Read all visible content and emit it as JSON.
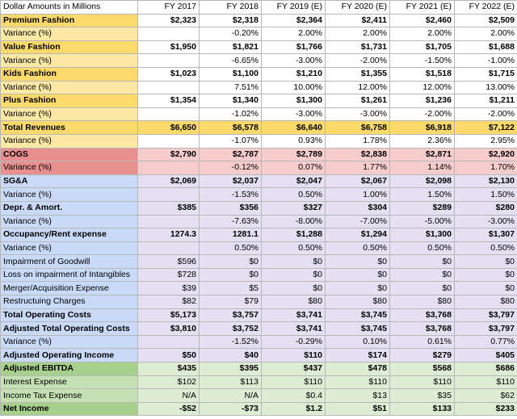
{
  "header": {
    "title": "Dollar Amounts in Millions",
    "years": [
      "FY 2017",
      "FY 2018",
      "FY 2019 (E)",
      "FY 2020 (E)",
      "FY 2021 (E)",
      "FY 2022 (E)"
    ]
  },
  "rows": [
    {
      "label": "Premium Fashion",
      "values": [
        "$2,323",
        "$2,318",
        "$2,364",
        "$2,411",
        "$2,460",
        "$2,509"
      ]
    },
    {
      "label": "Variance (%)",
      "values": [
        "",
        "-0.20%",
        "2.00%",
        "2.00%",
        "2.00%",
        "2.00%"
      ]
    },
    {
      "label": "Value Fashion",
      "values": [
        "$1,950",
        "$1,821",
        "$1,766",
        "$1,731",
        "$1,705",
        "$1,688"
      ]
    },
    {
      "label": "Variance (%)",
      "values": [
        "",
        "-6.65%",
        "-3.00%",
        "-2.00%",
        "-1.50%",
        "-1.00%"
      ]
    },
    {
      "label": "Kids Fashion",
      "values": [
        "$1,023",
        "$1,100",
        "$1,210",
        "$1,355",
        "$1,518",
        "$1,715"
      ]
    },
    {
      "label": "Variance (%)",
      "values": [
        "",
        "7.51%",
        "10.00%",
        "12.00%",
        "12.00%",
        "13.00%"
      ]
    },
    {
      "label": "Plus Fashion",
      "values": [
        "$1,354",
        "$1,340",
        "$1,300",
        "$1,261",
        "$1,236",
        "$1,211"
      ]
    },
    {
      "label": "Variance (%)",
      "values": [
        "",
        "-1.02%",
        "-3.00%",
        "-3.00%",
        "-2.00%",
        "-2.00%"
      ]
    },
    {
      "label": "Total Revenues",
      "values": [
        "$6,650",
        "$6,578",
        "$6,640",
        "$6,758",
        "$6,918",
        "$7,122"
      ]
    },
    {
      "label": "Variance (%)",
      "values": [
        "",
        "-1.07%",
        "0.93%",
        "1.78%",
        "2.36%",
        "2.95%"
      ]
    },
    {
      "label": "COGS",
      "values": [
        "$2,790",
        "$2,787",
        "$2,789",
        "$2,838",
        "$2,871",
        "$2,920"
      ]
    },
    {
      "label": "Variance (%)",
      "values": [
        "",
        "-0.12%",
        "0.07%",
        "1.77%",
        "1.14%",
        "1.70%"
      ]
    },
    {
      "label": "SG&A",
      "values": [
        "$2,069",
        "$2,037",
        "$2,047",
        "$2,067",
        "$2,098",
        "$2,130"
      ]
    },
    {
      "label": "Variance (%)",
      "values": [
        "",
        "-1.53%",
        "0.50%",
        "1.00%",
        "1.50%",
        "1.50%"
      ]
    },
    {
      "label": "Depr. & Amort.",
      "values": [
        "$385",
        "$356",
        "$327",
        "$304",
        "$289",
        "$280"
      ]
    },
    {
      "label": "Variance (%)",
      "values": [
        "",
        "-7.63%",
        "-8.00%",
        "-7.00%",
        "-5.00%",
        "-3.00%"
      ]
    },
    {
      "label": "Occupancy/Rent expense",
      "values": [
        "1274.3",
        "1281.1",
        "$1,288",
        "$1,294",
        "$1,300",
        "$1,307"
      ]
    },
    {
      "label": "Variance (%)",
      "values": [
        "",
        "0.50%",
        "0.50%",
        "0.50%",
        "0.50%",
        "0.50%"
      ]
    },
    {
      "label": "Impairment of Goodwill",
      "values": [
        "$596",
        "$0",
        "$0",
        "$0",
        "$0",
        "$0"
      ]
    },
    {
      "label": "Loss on impairment of Intangibles",
      "values": [
        "$728",
        "$0",
        "$0",
        "$0",
        "$0",
        "$0"
      ]
    },
    {
      "label": "Merger/Acquisition Expense",
      "values": [
        "$39",
        "$5",
        "$0",
        "$0",
        "$0",
        "$0"
      ]
    },
    {
      "label": "Restructuing Charges",
      "values": [
        "$82",
        "$79",
        "$80",
        "$80",
        "$80",
        "$80"
      ]
    },
    {
      "label": "Total Operating Costs",
      "values": [
        "$5,173",
        "$3,757",
        "$3,741",
        "$3,745",
        "$3,768",
        "$3,797"
      ]
    },
    {
      "label": "Adjusted Total Operating Costs",
      "values": [
        "$3,810",
        "$3,752",
        "$3,741",
        "$3,745",
        "$3,768",
        "$3,797"
      ]
    },
    {
      "label": "Variance (%)",
      "values": [
        "",
        "-1.52%",
        "-0.29%",
        "0.10%",
        "0.61%",
        "0.77%"
      ]
    },
    {
      "label": "Adjusted Operating Income",
      "values": [
        "$50",
        "$40",
        "$110",
        "$174",
        "$279",
        "$405"
      ]
    },
    {
      "label": "Adjusted EBITDA",
      "values": [
        "$435",
        "$395",
        "$437",
        "$478",
        "$568",
        "$686"
      ]
    },
    {
      "label": "Interest Expense",
      "values": [
        "$102",
        "$113",
        "$110",
        "$110",
        "$110",
        "$110"
      ]
    },
    {
      "label": "Income Tax Expense",
      "values": [
        "N/A",
        "N/A",
        "$0.4",
        "$13",
        "$35",
        "$62"
      ]
    },
    {
      "label": "Net Income",
      "values": [
        "-$52",
        "-$73",
        "$1.2",
        "$51",
        "$133",
        "$233"
      ]
    }
  ],
  "colors": {
    "yellow_label": "#fce9a6",
    "yellow_total": "#fbd96b",
    "cogs_label": "#e88f8f",
    "cogs_values": "#f6cccc",
    "blue_label": "#c9daf8",
    "blue_values": "#e4dff1",
    "green_label": "#a8d08d",
    "green_values": "#ddedd4",
    "border": "#b7b7b7"
  }
}
